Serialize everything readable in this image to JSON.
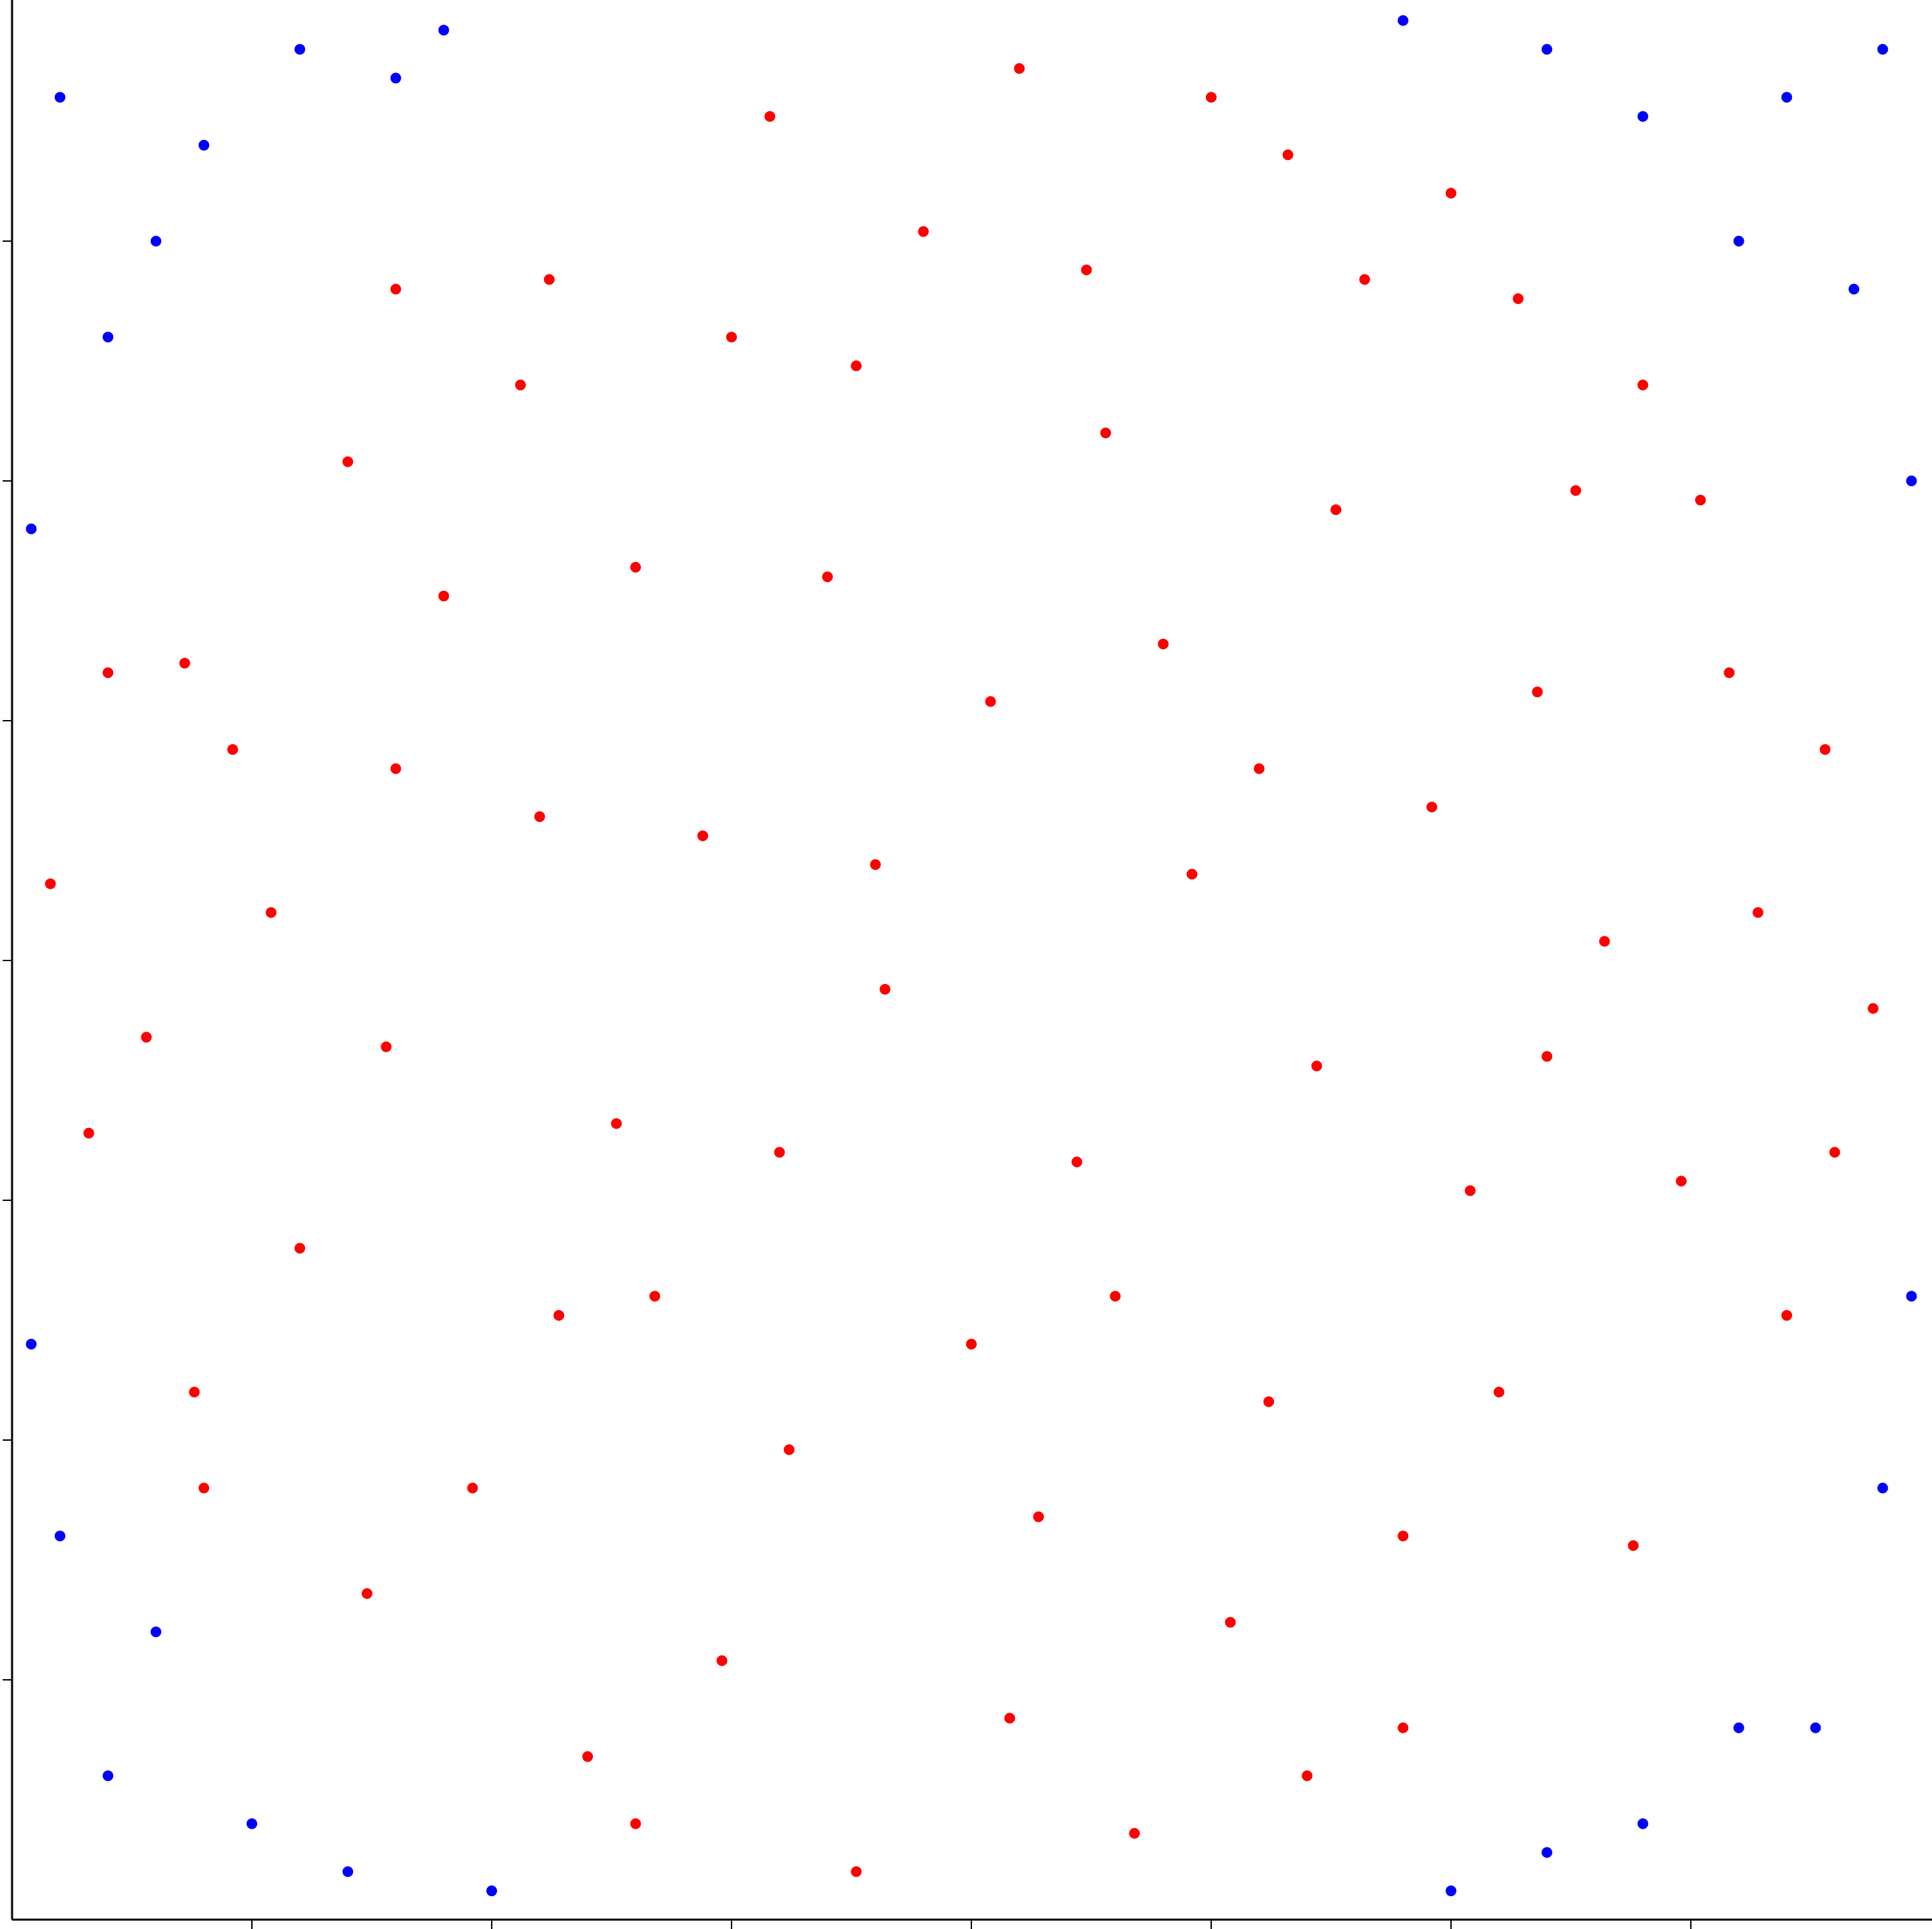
{
  "chart_data": {
    "type": "scatter",
    "xlim": [
      -1,
      1
    ],
    "ylim": [
      -1,
      1
    ],
    "xticks": [
      -0.75,
      -0.5,
      -0.25,
      0,
      0.25,
      0.5,
      0.75
    ],
    "yticks": [
      -0.75,
      -0.5,
      -0.25,
      0,
      0.25,
      0.5,
      0.75
    ],
    "series": [
      {
        "color": "#ff0000",
        "x": [
          -0.82,
          -0.65,
          -0.44,
          -0.21,
          0.05,
          0.33,
          0.57,
          0.76,
          0.89,
          0.94,
          0.85,
          0.69,
          0.45,
          0.17,
          -0.12,
          -0.4,
          -0.63,
          -0.81,
          -0.92,
          -0.96,
          -0.6,
          -0.35,
          -0.12,
          0.14,
          0.38,
          0.59,
          0.66,
          0.52,
          0.31,
          0.07,
          -0.19,
          -0.43,
          -0.61,
          -0.28,
          0.02,
          0.23,
          0.11,
          -0.09,
          -0.37,
          0.41,
          -0.73,
          -0.52,
          -0.26,
          0.27,
          0.74,
          0.79,
          0.48,
          -0.05,
          -0.47,
          -0.77,
          0.2,
          -0.15,
          0.36,
          -0.33,
          0.55,
          -0.55,
          0.04,
          0.63,
          -0.86,
          0.12,
          0.82,
          -0.7,
          0.3,
          -0.2,
          0.45,
          -0.6,
          0.7,
          -0.1,
          0.0,
          0.9,
          -0.9,
          0.25,
          -0.35,
          0.6,
          -0.45,
          0.15,
          -0.8,
          0.5,
          -0.25,
          0.35
        ],
        "values": [
          0.31,
          0.52,
          0.71,
          0.88,
          0.93,
          0.84,
          0.69,
          0.48,
          0.22,
          -0.05,
          -0.37,
          -0.61,
          -0.8,
          -0.91,
          -0.95,
          -0.83,
          -0.66,
          -0.45,
          -0.18,
          0.08,
          0.2,
          0.41,
          0.62,
          0.55,
          0.47,
          0.28,
          0.02,
          -0.24,
          -0.46,
          -0.58,
          -0.51,
          -0.37,
          -0.09,
          0.13,
          0.27,
          0.09,
          -0.21,
          -0.03,
          -0.17,
          0.71,
          0.05,
          -0.55,
          -0.73,
          -0.69,
          -0.23,
          0.3,
          0.16,
          0.76,
          0.6,
          0.22,
          0.33,
          0.4,
          -0.11,
          -0.35,
          -0.45,
          0.38,
          -0.79,
          0.49,
          -0.08,
          0.72,
          0.05,
          -0.3,
          0.2,
          -0.2,
          -0.6,
          0.7,
          0.6,
          0.1,
          -0.4,
          -0.2,
          0.3,
          0.9,
          -0.9,
          -0.1,
          0.15,
          -0.35,
          -0.55,
          0.8,
          0.65,
          -0.85
        ]
      },
      {
        "color": "#0000ff",
        "x": [
          -0.95,
          -0.8,
          -0.9,
          -0.7,
          -0.98,
          -0.85,
          -0.6,
          0.85,
          0.7,
          0.92,
          0.98,
          0.8,
          0.6,
          0.95,
          -0.9,
          -0.75,
          -0.95,
          -0.65,
          -0.98,
          -0.85,
          0.88,
          0.7,
          0.95,
          0.6,
          0.98,
          0.8,
          0.5,
          -0.5,
          -0.55,
          0.45
        ],
        "values": [
          0.9,
          0.85,
          0.65,
          0.95,
          0.45,
          0.75,
          0.92,
          0.9,
          0.88,
          0.7,
          0.5,
          0.75,
          0.95,
          0.95,
          -0.85,
          -0.9,
          -0.6,
          -0.95,
          -0.4,
          -0.7,
          -0.8,
          -0.9,
          -0.55,
          -0.93,
          -0.35,
          -0.8,
          -0.97,
          -0.97,
          0.97,
          0.98
        ]
      }
    ]
  }
}
